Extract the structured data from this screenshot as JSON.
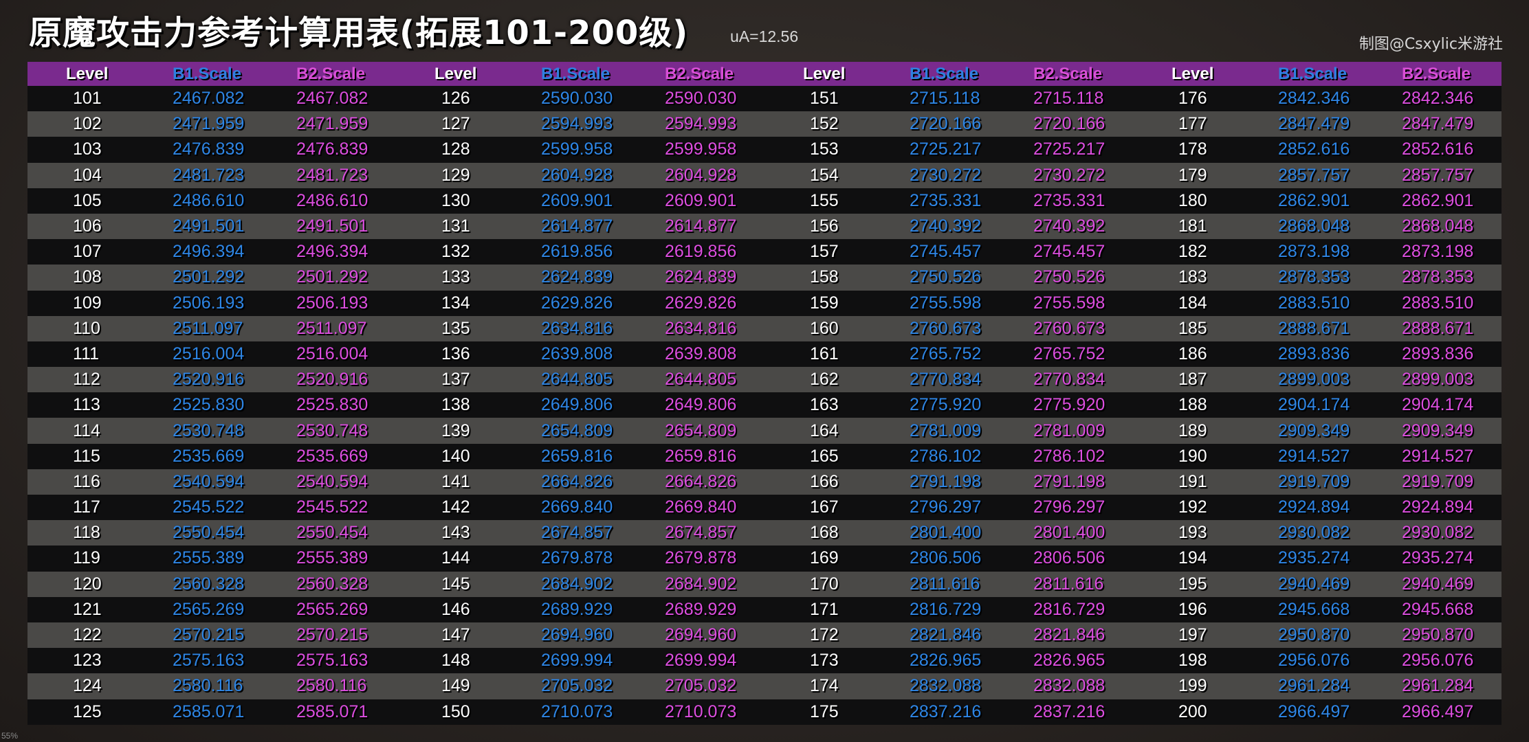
{
  "header": {
    "title": "原魔攻击力参考计算用表(拓展101-200级)",
    "ua": "uA=12.56",
    "credit": "制图@Csxylic米游社",
    "zoom": "55%"
  },
  "columns": {
    "level": "Level",
    "b1": "B1.Scale",
    "b2": "B2.Scale"
  },
  "colors": {
    "header_bg": "#7a2a8e",
    "row_dark": "#0f0f10",
    "row_light": "#4a4947",
    "level": "#ffffff",
    "b1": "#2e86e6",
    "b2": "#dd4ee0"
  },
  "rows": [
    [
      [
        "101",
        "2467.082",
        "2467.082"
      ],
      [
        "126",
        "2590.030",
        "2590.030"
      ],
      [
        "151",
        "2715.118",
        "2715.118"
      ],
      [
        "176",
        "2842.346",
        "2842.346"
      ]
    ],
    [
      [
        "102",
        "2471.959",
        "2471.959"
      ],
      [
        "127",
        "2594.993",
        "2594.993"
      ],
      [
        "152",
        "2720.166",
        "2720.166"
      ],
      [
        "177",
        "2847.479",
        "2847.479"
      ]
    ],
    [
      [
        "103",
        "2476.839",
        "2476.839"
      ],
      [
        "128",
        "2599.958",
        "2599.958"
      ],
      [
        "153",
        "2725.217",
        "2725.217"
      ],
      [
        "178",
        "2852.616",
        "2852.616"
      ]
    ],
    [
      [
        "104",
        "2481.723",
        "2481.723"
      ],
      [
        "129",
        "2604.928",
        "2604.928"
      ],
      [
        "154",
        "2730.272",
        "2730.272"
      ],
      [
        "179",
        "2857.757",
        "2857.757"
      ]
    ],
    [
      [
        "105",
        "2486.610",
        "2486.610"
      ],
      [
        "130",
        "2609.901",
        "2609.901"
      ],
      [
        "155",
        "2735.331",
        "2735.331"
      ],
      [
        "180",
        "2862.901",
        "2862.901"
      ]
    ],
    [
      [
        "106",
        "2491.501",
        "2491.501"
      ],
      [
        "131",
        "2614.877",
        "2614.877"
      ],
      [
        "156",
        "2740.392",
        "2740.392"
      ],
      [
        "181",
        "2868.048",
        "2868.048"
      ]
    ],
    [
      [
        "107",
        "2496.394",
        "2496.394"
      ],
      [
        "132",
        "2619.856",
        "2619.856"
      ],
      [
        "157",
        "2745.457",
        "2745.457"
      ],
      [
        "182",
        "2873.198",
        "2873.198"
      ]
    ],
    [
      [
        "108",
        "2501.292",
        "2501.292"
      ],
      [
        "133",
        "2624.839",
        "2624.839"
      ],
      [
        "158",
        "2750.526",
        "2750.526"
      ],
      [
        "183",
        "2878.353",
        "2878.353"
      ]
    ],
    [
      [
        "109",
        "2506.193",
        "2506.193"
      ],
      [
        "134",
        "2629.826",
        "2629.826"
      ],
      [
        "159",
        "2755.598",
        "2755.598"
      ],
      [
        "184",
        "2883.510",
        "2883.510"
      ]
    ],
    [
      [
        "110",
        "2511.097",
        "2511.097"
      ],
      [
        "135",
        "2634.816",
        "2634.816"
      ],
      [
        "160",
        "2760.673",
        "2760.673"
      ],
      [
        "185",
        "2888.671",
        "2888.671"
      ]
    ],
    [
      [
        "111",
        "2516.004",
        "2516.004"
      ],
      [
        "136",
        "2639.808",
        "2639.808"
      ],
      [
        "161",
        "2765.752",
        "2765.752"
      ],
      [
        "186",
        "2893.836",
        "2893.836"
      ]
    ],
    [
      [
        "112",
        "2520.916",
        "2520.916"
      ],
      [
        "137",
        "2644.805",
        "2644.805"
      ],
      [
        "162",
        "2770.834",
        "2770.834"
      ],
      [
        "187",
        "2899.003",
        "2899.003"
      ]
    ],
    [
      [
        "113",
        "2525.830",
        "2525.830"
      ],
      [
        "138",
        "2649.806",
        "2649.806"
      ],
      [
        "163",
        "2775.920",
        "2775.920"
      ],
      [
        "188",
        "2904.174",
        "2904.174"
      ]
    ],
    [
      [
        "114",
        "2530.748",
        "2530.748"
      ],
      [
        "139",
        "2654.809",
        "2654.809"
      ],
      [
        "164",
        "2781.009",
        "2781.009"
      ],
      [
        "189",
        "2909.349",
        "2909.349"
      ]
    ],
    [
      [
        "115",
        "2535.669",
        "2535.669"
      ],
      [
        "140",
        "2659.816",
        "2659.816"
      ],
      [
        "165",
        "2786.102",
        "2786.102"
      ],
      [
        "190",
        "2914.527",
        "2914.527"
      ]
    ],
    [
      [
        "116",
        "2540.594",
        "2540.594"
      ],
      [
        "141",
        "2664.826",
        "2664.826"
      ],
      [
        "166",
        "2791.198",
        "2791.198"
      ],
      [
        "191",
        "2919.709",
        "2919.709"
      ]
    ],
    [
      [
        "117",
        "2545.522",
        "2545.522"
      ],
      [
        "142",
        "2669.840",
        "2669.840"
      ],
      [
        "167",
        "2796.297",
        "2796.297"
      ],
      [
        "192",
        "2924.894",
        "2924.894"
      ]
    ],
    [
      [
        "118",
        "2550.454",
        "2550.454"
      ],
      [
        "143",
        "2674.857",
        "2674.857"
      ],
      [
        "168",
        "2801.400",
        "2801.400"
      ],
      [
        "193",
        "2930.082",
        "2930.082"
      ]
    ],
    [
      [
        "119",
        "2555.389",
        "2555.389"
      ],
      [
        "144",
        "2679.878",
        "2679.878"
      ],
      [
        "169",
        "2806.506",
        "2806.506"
      ],
      [
        "194",
        "2935.274",
        "2935.274"
      ]
    ],
    [
      [
        "120",
        "2560.328",
        "2560.328"
      ],
      [
        "145",
        "2684.902",
        "2684.902"
      ],
      [
        "170",
        "2811.616",
        "2811.616"
      ],
      [
        "195",
        "2940.469",
        "2940.469"
      ]
    ],
    [
      [
        "121",
        "2565.269",
        "2565.269"
      ],
      [
        "146",
        "2689.929",
        "2689.929"
      ],
      [
        "171",
        "2816.729",
        "2816.729"
      ],
      [
        "196",
        "2945.668",
        "2945.668"
      ]
    ],
    [
      [
        "122",
        "2570.215",
        "2570.215"
      ],
      [
        "147",
        "2694.960",
        "2694.960"
      ],
      [
        "172",
        "2821.846",
        "2821.846"
      ],
      [
        "197",
        "2950.870",
        "2950.870"
      ]
    ],
    [
      [
        "123",
        "2575.163",
        "2575.163"
      ],
      [
        "148",
        "2699.994",
        "2699.994"
      ],
      [
        "173",
        "2826.965",
        "2826.965"
      ],
      [
        "198",
        "2956.076",
        "2956.076"
      ]
    ],
    [
      [
        "124",
        "2580.116",
        "2580.116"
      ],
      [
        "149",
        "2705.032",
        "2705.032"
      ],
      [
        "174",
        "2832.088",
        "2832.088"
      ],
      [
        "199",
        "2961.284",
        "2961.284"
      ]
    ],
    [
      [
        "125",
        "2585.071",
        "2585.071"
      ],
      [
        "150",
        "2710.073",
        "2710.073"
      ],
      [
        "175",
        "2837.216",
        "2837.216"
      ],
      [
        "200",
        "2966.497",
        "2966.497"
      ]
    ]
  ]
}
